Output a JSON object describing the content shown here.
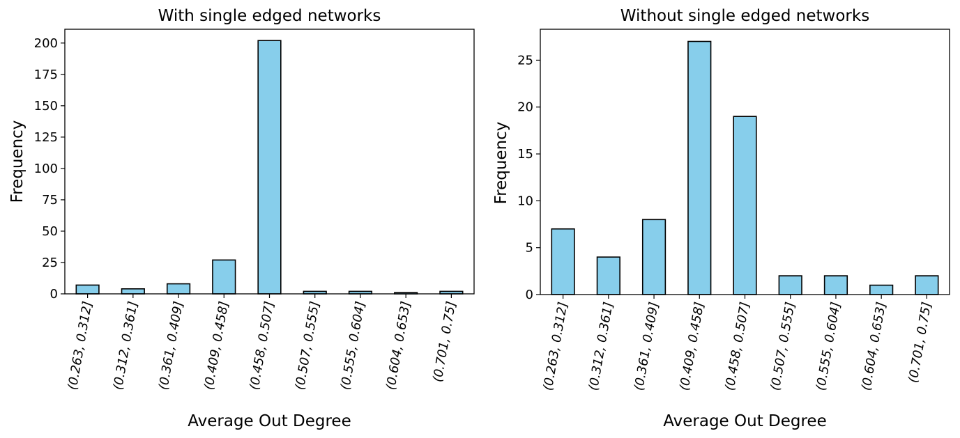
{
  "chart_data": [
    {
      "type": "bar",
      "title": "With single edged networks",
      "xlabel": "Average Out Degree",
      "ylabel": "Frequency",
      "categories": [
        "(0.263, 0.312]",
        "(0.312, 0.361]",
        "(0.361, 0.409]",
        "(0.409, 0.458]",
        "(0.458, 0.507]",
        "(0.507, 0.555]",
        "(0.555, 0.604]",
        "(0.604, 0.653]",
        "(0.701, 0.75]"
      ],
      "values": [
        7,
        4,
        8,
        27,
        202,
        2,
        2,
        1,
        2
      ],
      "ylim": [
        0,
        211
      ],
      "yticks": [
        0,
        25,
        50,
        75,
        100,
        125,
        150,
        175,
        200
      ],
      "bar_color": "#87ceeb",
      "grid": false,
      "legend": "none"
    },
    {
      "type": "bar",
      "title": "Without single edged networks",
      "xlabel": "Average Out Degree",
      "ylabel": "Frequency",
      "categories": [
        "(0.263, 0.312]",
        "(0.312, 0.361]",
        "(0.361, 0.409]",
        "(0.409, 0.458]",
        "(0.458, 0.507]",
        "(0.507, 0.555]",
        "(0.555, 0.604]",
        "(0.604, 0.653]",
        "(0.701, 0.75]"
      ],
      "values": [
        7,
        4,
        8,
        27,
        19,
        2,
        2,
        1,
        2
      ],
      "ylim": [
        0,
        28.3
      ],
      "yticks": [
        0,
        5,
        10,
        15,
        20,
        25
      ],
      "bar_color": "#87ceeb",
      "grid": false,
      "legend": "none"
    }
  ]
}
